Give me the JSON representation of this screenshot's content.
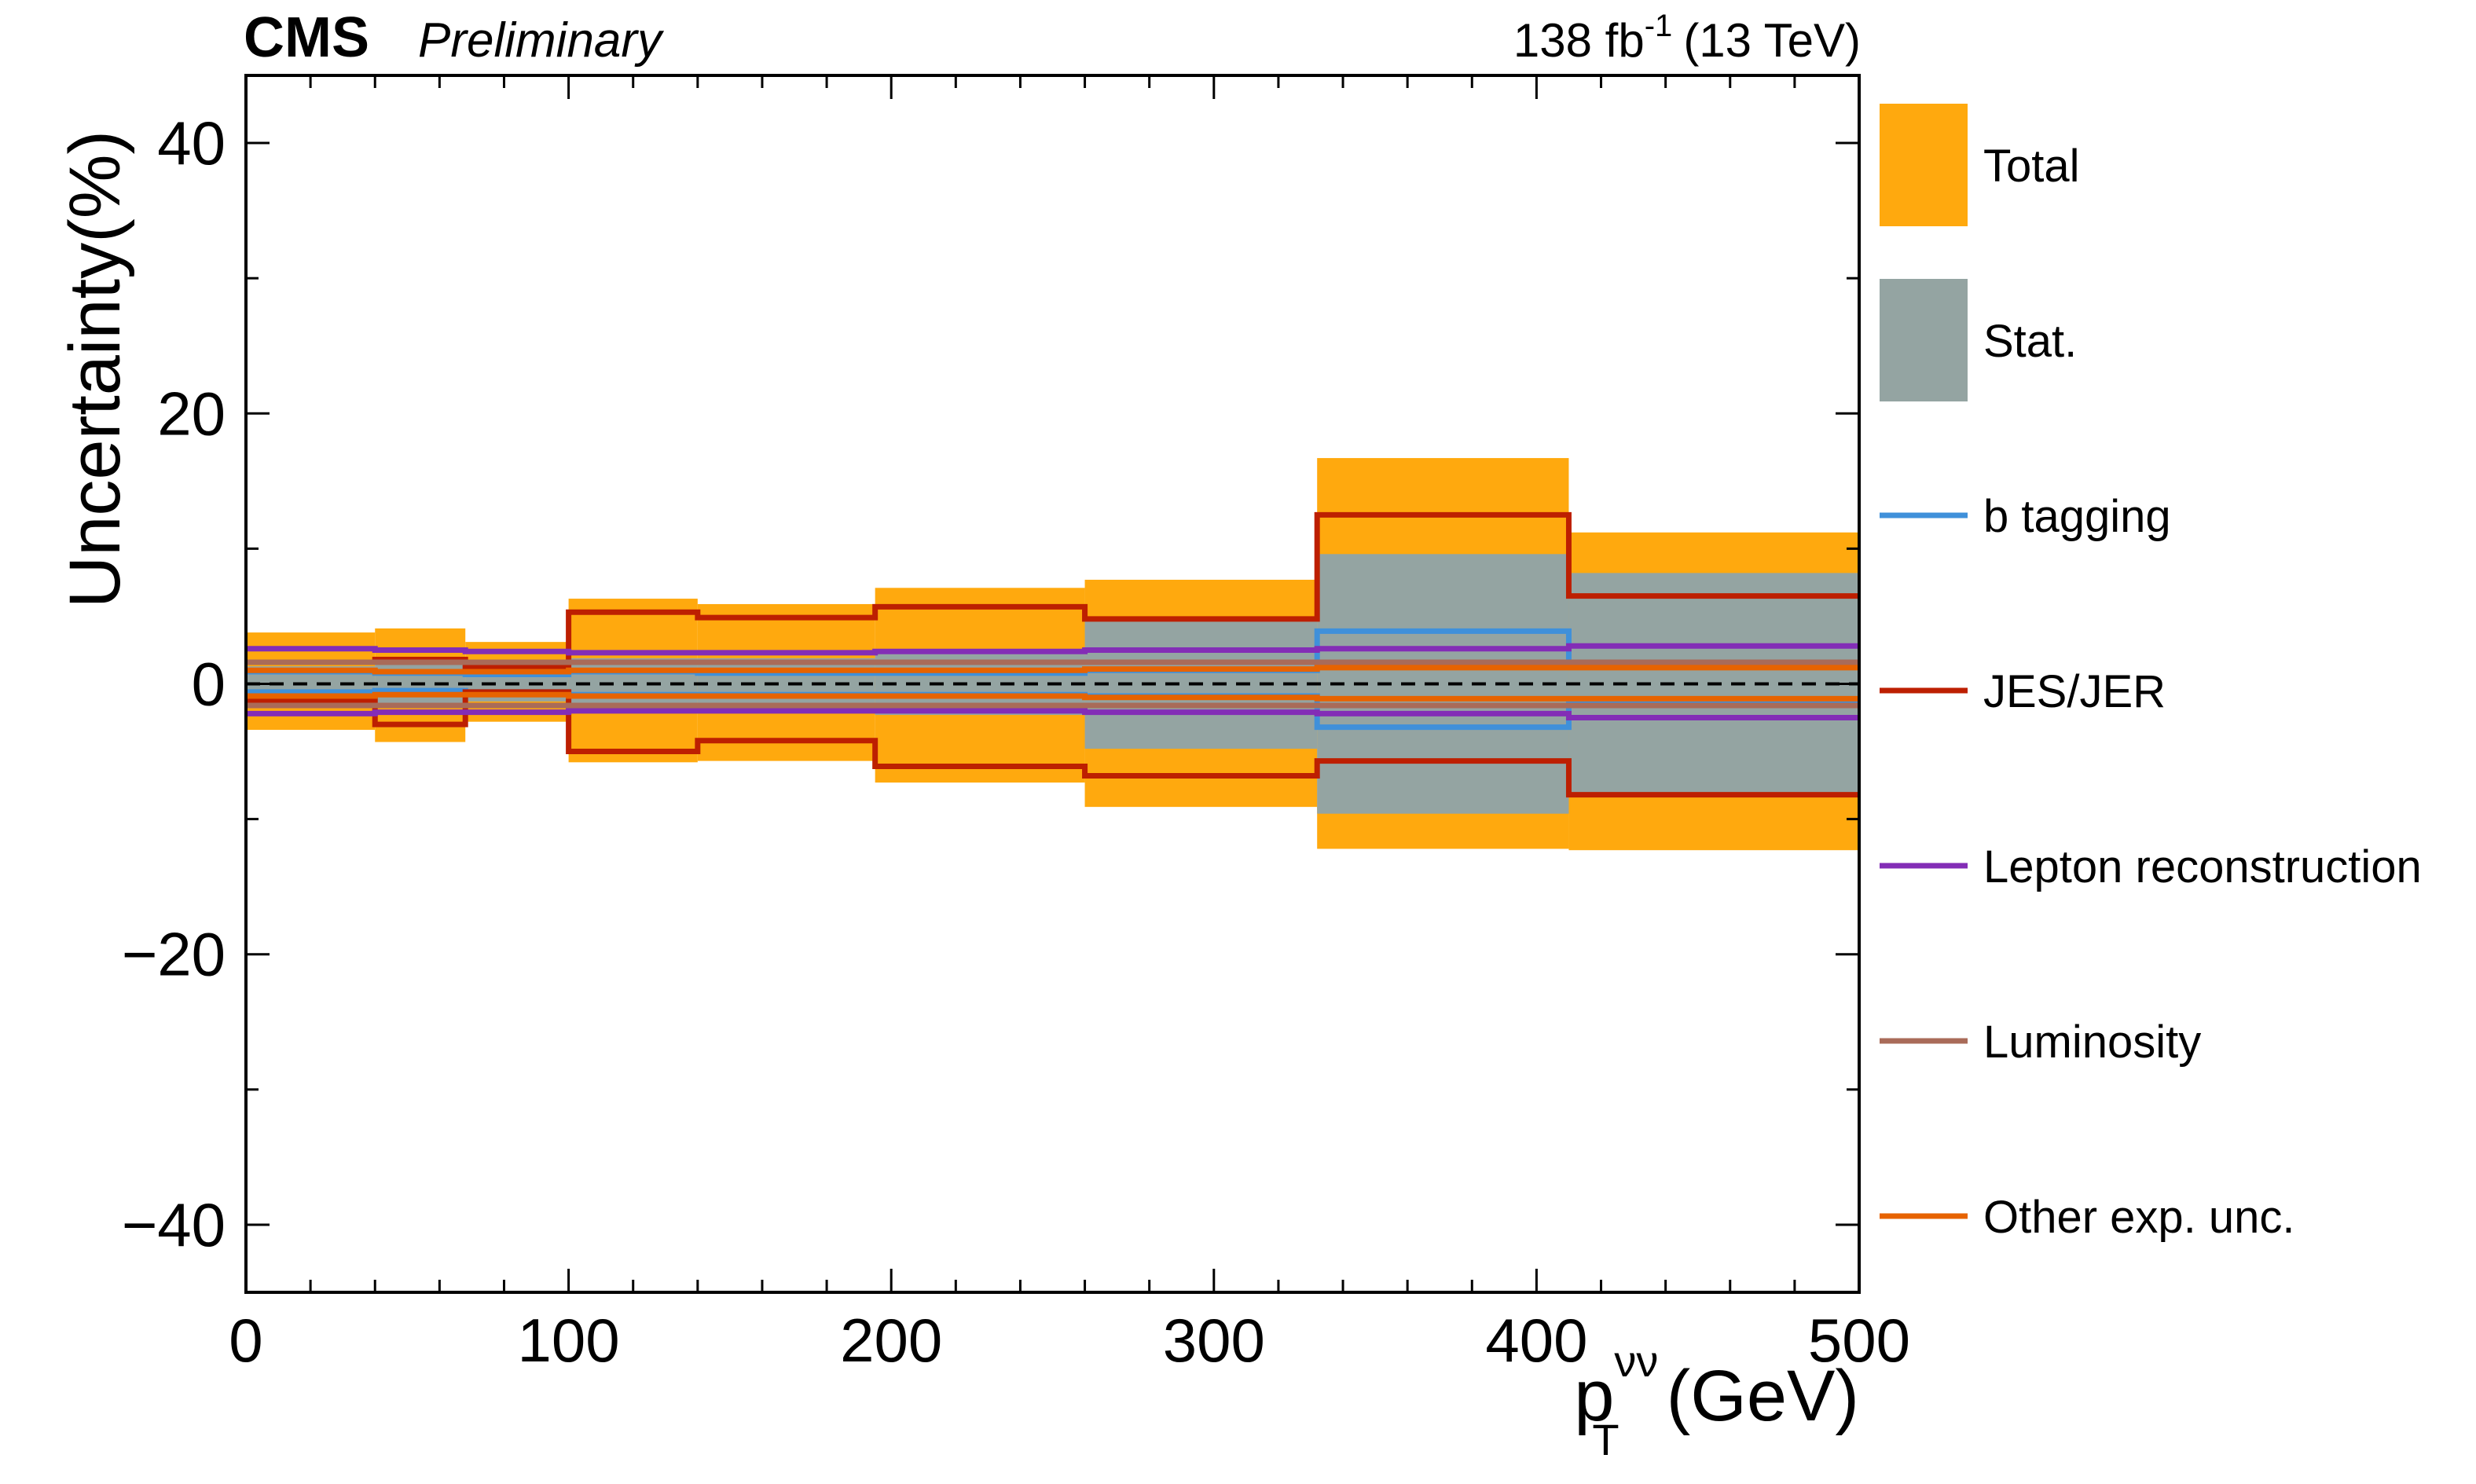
{
  "header": {
    "experiment": "CMS",
    "status": "Preliminary",
    "lumi_value": "138 fb",
    "lumi_exponent": "-1",
    "energy": "(13 TeV)"
  },
  "axes": {
    "y_title": "Uncertainty(%)",
    "x_title_main": "p",
    "x_title_sub": "T",
    "x_title_sup": "νν",
    "x_title_unit": "(GeV)"
  },
  "colors": {
    "total": "#ffa90e",
    "stat": "#94a4a2",
    "btag": "#3f90da",
    "jes": "#bd1f01",
    "lepton": "#832db6",
    "lumi": "#a96b59",
    "other": "#e76300"
  },
  "chart_data": {
    "type": "step-histogram",
    "xlim": [
      0,
      500
    ],
    "ylim": [
      -45,
      45
    ],
    "x_ticks": [
      0,
      100,
      200,
      300,
      400,
      500
    ],
    "x_tick_labels": [
      "0",
      "100",
      "200",
      "300",
      "400",
      "500"
    ],
    "y_ticks": [
      -40,
      -20,
      0,
      20,
      40
    ],
    "y_tick_labels": [
      "−40",
      "−20",
      "0",
      "20",
      "40"
    ],
    "bin_edges": [
      0,
      40,
      68,
      100,
      140,
      195,
      260,
      332,
      410,
      500
    ],
    "bands": [
      {
        "name": "Total",
        "color_key": "total",
        "up": [
          3.8,
          4.1,
          3.1,
          6.3,
          5.9,
          7.1,
          7.7,
          16.7,
          11.2
        ],
        "down": [
          -3.4,
          -4.3,
          -2.8,
          -5.8,
          -5.7,
          -7.3,
          -9.1,
          -12.2,
          -12.3
        ]
      },
      {
        "name": "Stat.",
        "color_key": "stat",
        "up": [
          1.3,
          1.6,
          1.4,
          1.9,
          1.9,
          2.3,
          4.8,
          9.6,
          8.2
        ],
        "down": [
          -1.4,
          -1.5,
          -1.3,
          -1.9,
          -1.9,
          -2.3,
          -4.8,
          -9.6,
          -8.2
        ]
      }
    ],
    "series": [
      {
        "name": "b tagging",
        "color_key": "btag",
        "up": [
          0.9,
          0.8,
          0.7,
          0.9,
          0.8,
          0.8,
          1.0,
          3.9,
          1.6
        ],
        "down": [
          -0.6,
          -0.5,
          -0.6,
          -0.8,
          -0.8,
          -0.8,
          -0.9,
          -3.2,
          -1.5
        ]
      },
      {
        "name": "JES/JER",
        "color_key": "jes",
        "up": [
          1.6,
          1.8,
          1.2,
          5.3,
          4.9,
          5.7,
          4.8,
          12.5,
          6.5
        ],
        "down": [
          -1.2,
          -3.0,
          -0.6,
          -5.0,
          -4.2,
          -6.1,
          -6.8,
          -5.7,
          -8.2
        ]
      },
      {
        "name": "Lepton reconstruction",
        "color_key": "lepton",
        "up": [
          2.6,
          2.5,
          2.4,
          2.3,
          2.3,
          2.4,
          2.5,
          2.6,
          2.8
        ],
        "down": [
          -2.2,
          -2.1,
          -2.1,
          -2.0,
          -2.0,
          -2.0,
          -2.1,
          -2.2,
          -2.5
        ]
      },
      {
        "name": "Luminosity",
        "color_key": "lumi",
        "up": [
          1.6,
          1.6,
          1.6,
          1.6,
          1.6,
          1.6,
          1.6,
          1.6,
          1.6
        ],
        "down": [
          -1.6,
          -1.6,
          -1.6,
          -1.6,
          -1.6,
          -1.6,
          -1.6,
          -1.6,
          -1.6
        ]
      },
      {
        "name": "Other exp. unc.",
        "color_key": "other",
        "up": [
          1.0,
          0.9,
          0.9,
          1.0,
          1.0,
          1.0,
          1.1,
          1.2,
          1.2
        ],
        "down": [
          -0.9,
          -0.8,
          -0.8,
          -0.9,
          -0.9,
          -0.9,
          -1.0,
          -1.1,
          -1.1
        ]
      }
    ],
    "legend": [
      {
        "label": "Total",
        "kind": "band",
        "color_key": "total"
      },
      {
        "label": "Stat.",
        "kind": "band",
        "color_key": "stat"
      },
      {
        "label": "b tagging",
        "kind": "line",
        "color_key": "btag"
      },
      {
        "label": "JES/JER",
        "kind": "line",
        "color_key": "jes"
      },
      {
        "label": "Lepton reconstruction",
        "kind": "line",
        "color_key": "lepton"
      },
      {
        "label": "Luminosity",
        "kind": "line",
        "color_key": "lumi"
      },
      {
        "label": "Other exp. unc.",
        "kind": "line",
        "color_key": "other"
      }
    ],
    "legend_position": "outside-right",
    "reference_line": 0
  }
}
